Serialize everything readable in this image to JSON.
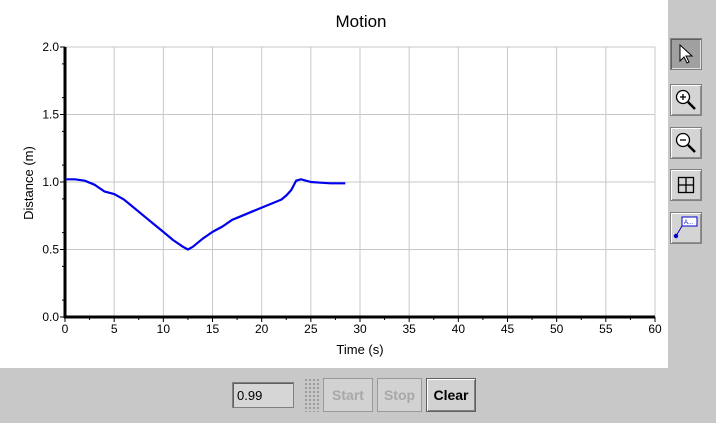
{
  "chart_data": {
    "type": "line",
    "title": "Motion",
    "xlabel": "Time (s)",
    "ylabel": "Distance (m)",
    "xlim": [
      0,
      60
    ],
    "ylim": [
      0,
      2.0
    ],
    "x_ticks": [
      "0",
      "5",
      "10",
      "15",
      "20",
      "25",
      "30",
      "35",
      "40",
      "45",
      "50",
      "55",
      "60"
    ],
    "y_ticks": [
      "0.0",
      "0.5",
      "1.0",
      "1.5",
      "2.0"
    ],
    "grid": true,
    "line_color": "#0000ee",
    "series": [
      {
        "x": [
          0,
          1,
          2,
          3,
          4,
          5,
          6,
          7,
          8,
          9,
          10,
          11,
          12,
          12.5,
          13,
          14,
          15,
          16,
          17,
          18,
          19,
          20,
          21,
          22,
          22.5,
          23,
          23.5,
          24,
          25,
          26,
          27,
          28.5
        ],
        "y": [
          1.02,
          1.02,
          1.01,
          0.98,
          0.93,
          0.91,
          0.87,
          0.81,
          0.75,
          0.69,
          0.63,
          0.57,
          0.52,
          0.5,
          0.52,
          0.58,
          0.63,
          0.67,
          0.72,
          0.75,
          0.78,
          0.81,
          0.84,
          0.87,
          0.9,
          0.94,
          1.01,
          1.02,
          1.0,
          0.995,
          0.99,
          0.99
        ]
      }
    ]
  },
  "toolbar": {
    "tools": [
      {
        "name": "select-arrow-icon",
        "active": true
      },
      {
        "name": "zoom-in-icon",
        "active": false
      },
      {
        "name": "zoom-out-icon",
        "active": false
      },
      {
        "name": "grid-icon",
        "active": false
      },
      {
        "name": "annotation-icon",
        "active": false
      }
    ]
  },
  "controls": {
    "readout_value": "0.99",
    "start_label": "Start",
    "stop_label": "Stop",
    "clear_label": "Clear"
  }
}
